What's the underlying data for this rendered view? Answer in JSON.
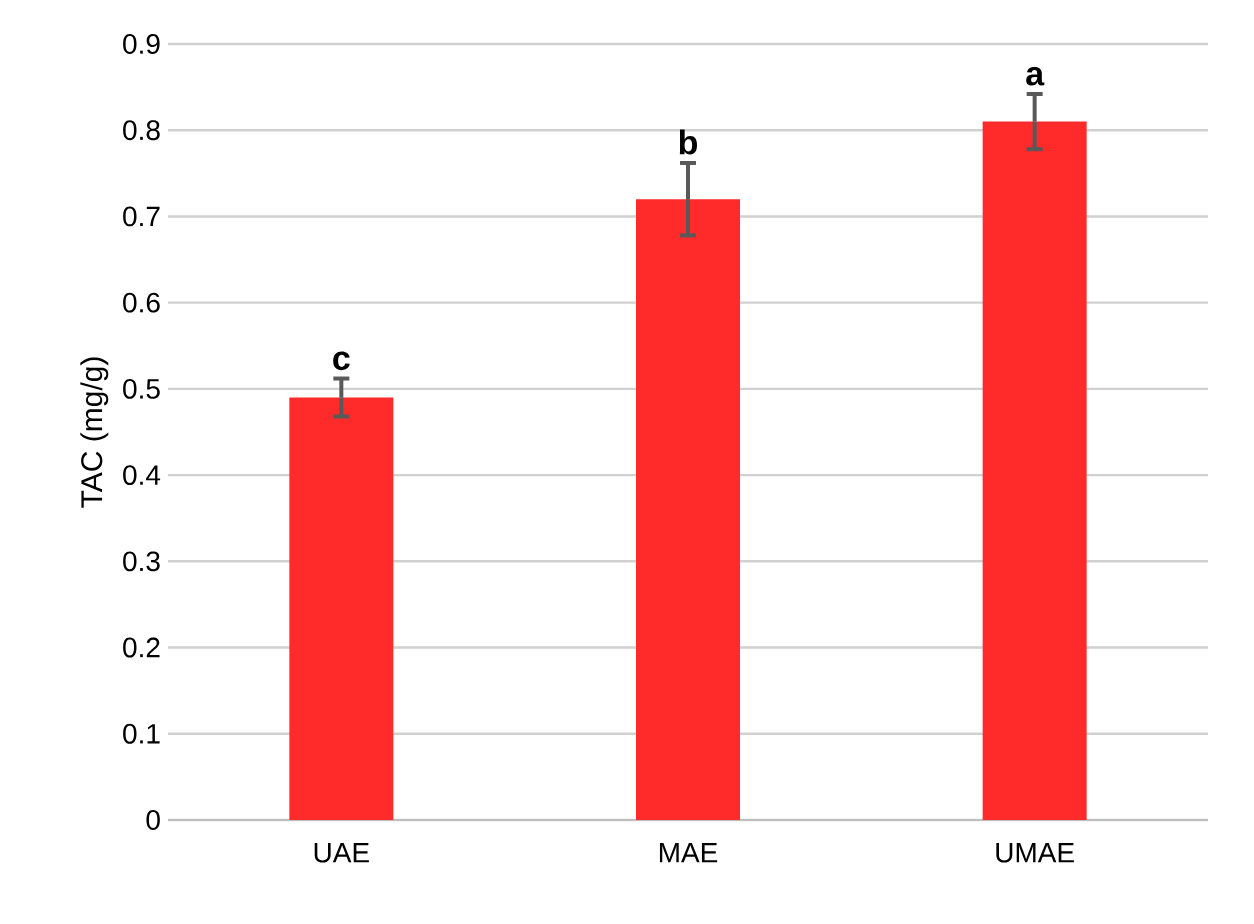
{
  "chart_data": {
    "type": "bar",
    "ylabel": "TAC (mg/g)",
    "categories": [
      "UAE",
      "MAE",
      "UMAE"
    ],
    "values": [
      0.49,
      0.72,
      0.81
    ],
    "errors": [
      0.022,
      0.042,
      0.032
    ],
    "color": "#ff2a2a",
    "ylim": [
      0,
      0.9
    ],
    "yticks": [
      0,
      0.1,
      0.2,
      0.3,
      0.4,
      0.5,
      0.6,
      0.7,
      0.8,
      0.9
    ],
    "grid": "y",
    "annotations": [
      {
        "text": "c",
        "x": "UAE",
        "y": 0.512
      },
      {
        "text": "b",
        "x": "MAE",
        "y": 0.762
      },
      {
        "text": "a",
        "x": "UMAE",
        "y": 0.842
      }
    ]
  }
}
